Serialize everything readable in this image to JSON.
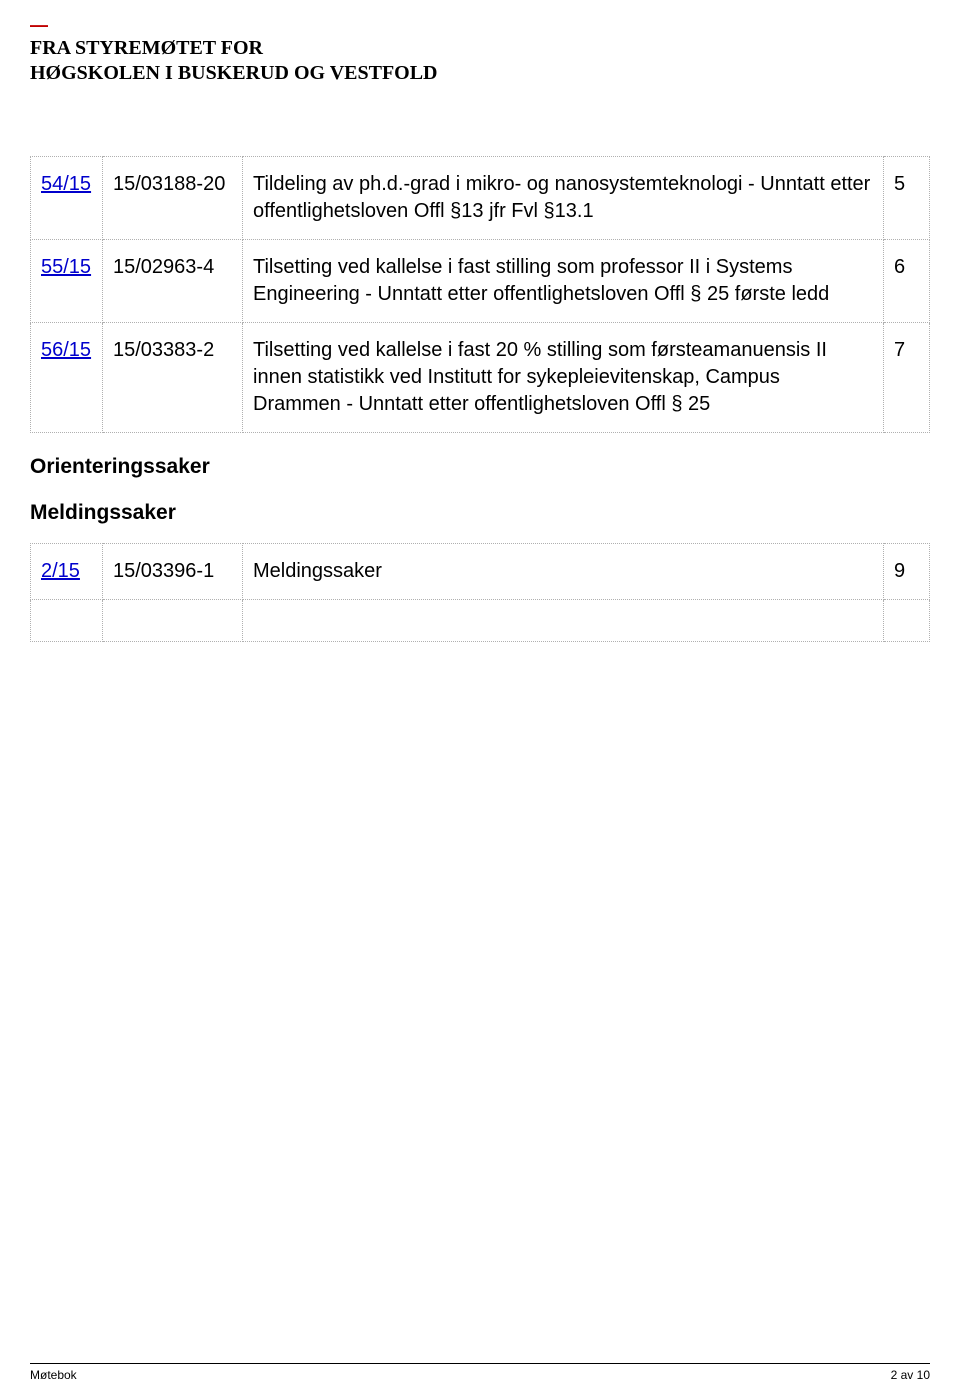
{
  "header": {
    "dash": "—",
    "line1": "FRA STYREMØTET FOR",
    "line2": "HØGSKOLEN I BUSKERUD OG VESTFOLD"
  },
  "cases": [
    {
      "link": "54/15",
      "ref": "15/03188-20",
      "desc": "Tildeling av ph.d.-grad i mikro- og nanosystemteknologi - Unntatt etter offentlighetsloven Offl §13 jfr Fvl §13.1",
      "page": "5"
    },
    {
      "link": "55/15",
      "ref": "15/02963-4",
      "desc": "Tilsetting ved kallelse i fast stilling som professor II i Systems Engineering - Unntatt etter offentlighetsloven Offl § 25 første ledd",
      "page": "6"
    },
    {
      "link": "56/15",
      "ref": "15/03383-2",
      "desc": "Tilsetting ved kallelse i fast 20 % stilling som førsteamanuensis II innen statistikk ved Institutt for sykepleievitenskap, Campus Drammen - Unntatt etter offentlighetsloven Offl § 25",
      "page": "7"
    }
  ],
  "sections": {
    "orientering": "Orienteringssaker",
    "melding": "Meldingssaker"
  },
  "meldings": [
    {
      "link": "2/15",
      "ref": "15/03396-1",
      "desc": "Meldingssaker",
      "page": "9"
    }
  ],
  "footer": {
    "left": "Møtebok",
    "right": "2 av 10"
  }
}
